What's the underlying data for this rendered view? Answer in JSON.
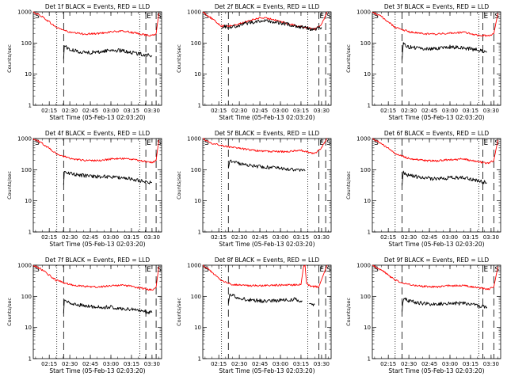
{
  "figure": {
    "x_ticks": [
      "02:15",
      "02:30",
      "02:45",
      "03:00",
      "03:15",
      "03:30"
    ],
    "x_label": "Start Time (05-Feb-13 02:03:20)",
    "y_label": "Counts/sec",
    "y_ticks": [
      "1",
      "10",
      "100",
      "1000"
    ]
  },
  "chart_data": [
    {
      "type": "line",
      "title": "Det 1f BLACK = Events, RED = LLD",
      "xlabel": "Start Time (05-Feb-13 02:03:20)",
      "ylabel": "Counts/sec",
      "yscale": "log",
      "xlim": [
        "02:03:20",
        "03:37:00"
      ],
      "ylim": [
        1,
        1000
      ],
      "x_tick_labels": [
        "02:15",
        "02:30",
        "02:45",
        "03:00",
        "03:15",
        "03:30"
      ],
      "dotted_lines": [
        "02:20:30",
        "03:21:00"
      ],
      "dashed_lines": [
        "02:25:30",
        "03:25:30",
        "03:33:00"
      ],
      "markers": [
        {
          "text": "S",
          "x": "02:04:00"
        },
        {
          "text": "E",
          "x": "03:25:30"
        },
        {
          "text": "S",
          "x": "03:33:00"
        }
      ],
      "series": [
        {
          "name": "RED",
          "color": "#ff0000",
          "x": [
            "02:03:20",
            "02:10:00",
            "02:20:00",
            "02:30:00",
            "02:40:00",
            "02:50:00",
            "03:00:00",
            "03:10:00",
            "03:20:00",
            "03:30:00",
            "03:33:00",
            "03:35:00"
          ],
          "values": [
            1000,
            700,
            320,
            220,
            195,
            200,
            230,
            240,
            200,
            170,
            200,
            900
          ]
        },
        {
          "name": "BLACK",
          "color": "#000000",
          "x": [
            "02:25:30",
            "02:26:00",
            "02:30:00",
            "02:40:00",
            "02:50:00",
            "03:00:00",
            "03:10:00",
            "03:20:00",
            "03:30:00"
          ],
          "values": [
            30,
            85,
            60,
            50,
            50,
            60,
            55,
            45,
            40
          ]
        }
      ]
    },
    {
      "type": "line",
      "title": "Det 2f BLACK = Events, RED = LLD",
      "xlabel": "Start Time (05-Feb-13 02:03:20)",
      "ylabel": "Counts/sec",
      "yscale": "log",
      "xlim": [
        "02:03:20",
        "03:37:00"
      ],
      "ylim": [
        1,
        1000
      ],
      "x_tick_labels": [
        "02:15",
        "02:30",
        "02:45",
        "03:00",
        "03:15",
        "03:30"
      ],
      "dotted_lines": [
        "02:17:00",
        "03:20:00"
      ],
      "dashed_lines": [
        "02:22:00",
        "03:28:00",
        "03:33:00"
      ],
      "markers": [
        {
          "text": "S",
          "x": "02:04:00"
        },
        {
          "text": "E",
          "x": "03:28:00"
        },
        {
          "text": "S",
          "x": "03:33:00"
        }
      ],
      "series": [
        {
          "name": "RED",
          "color": "#ff0000",
          "x": [
            "02:03:20",
            "02:10:00",
            "02:17:00",
            "02:25:00",
            "02:35:00",
            "02:45:00",
            "02:55:00",
            "03:05:00",
            "03:15:00",
            "03:25:00",
            "03:30:00",
            "03:34:00"
          ],
          "values": [
            1000,
            600,
            350,
            360,
            480,
            650,
            580,
            420,
            340,
            280,
            400,
            1000
          ]
        },
        {
          "name": "BLACK",
          "color": "#000000",
          "x": [
            "02:17:00",
            "02:25:00",
            "02:35:00",
            "02:45:00",
            "02:55:00",
            "03:05:00",
            "03:15:00",
            "03:25:00",
            "03:30:00"
          ],
          "values": [
            340,
            330,
            430,
            520,
            480,
            400,
            330,
            270,
            320
          ]
        }
      ]
    },
    {
      "type": "line",
      "title": "Det 3f BLACK = Events, RED = LLD",
      "xlabel": "Start Time (05-Feb-13 02:03:20)",
      "ylabel": "Counts/sec",
      "yscale": "log",
      "xlim": [
        "02:03:20",
        "03:37:00"
      ],
      "ylim": [
        1,
        1000
      ],
      "x_tick_labels": [
        "02:15",
        "02:30",
        "02:45",
        "03:00",
        "03:15",
        "03:30"
      ],
      "dotted_lines": [
        "02:20:00",
        "03:21:00"
      ],
      "dashed_lines": [
        "02:25:00",
        "03:24:00",
        "03:32:00"
      ],
      "markers": [
        {
          "text": "S",
          "x": "02:04:00"
        },
        {
          "text": "E",
          "x": "03:24:00"
        },
        {
          "text": "S",
          "x": "03:32:00"
        }
      ],
      "series": [
        {
          "name": "RED",
          "color": "#ff0000",
          "x": [
            "02:03:20",
            "02:10:00",
            "02:20:00",
            "02:30:00",
            "02:40:00",
            "02:50:00",
            "03:00:00",
            "03:10:00",
            "03:20:00",
            "03:28:00",
            "03:32:00",
            "03:35:00"
          ],
          "values": [
            1000,
            700,
            320,
            230,
            200,
            190,
            210,
            220,
            180,
            170,
            200,
            900
          ]
        },
        {
          "name": "BLACK",
          "color": "#000000",
          "x": [
            "02:25:00",
            "02:26:00",
            "02:30:00",
            "02:40:00",
            "02:50:00",
            "03:00:00",
            "03:10:00",
            "03:20:00",
            "03:27:00"
          ],
          "values": [
            30,
            95,
            75,
            65,
            65,
            75,
            70,
            60,
            50
          ]
        }
      ]
    },
    {
      "type": "line",
      "title": "Det 4f BLACK = Events, RED = LLD",
      "xlabel": "Start Time (05-Feb-13 02:03:20)",
      "ylabel": "Counts/sec",
      "yscale": "log",
      "xlim": [
        "02:03:20",
        "03:37:00"
      ],
      "ylim": [
        1,
        1000
      ],
      "x_tick_labels": [
        "02:15",
        "02:30",
        "02:45",
        "03:00",
        "03:15",
        "03:30"
      ],
      "dotted_lines": [
        "02:20:30",
        "03:21:00"
      ],
      "dashed_lines": [
        "02:25:30",
        "03:25:30",
        "03:33:00"
      ],
      "markers": [
        {
          "text": "S",
          "x": "02:04:00"
        },
        {
          "text": "E",
          "x": "03:25:30"
        },
        {
          "text": "S",
          "x": "03:33:00"
        }
      ],
      "series": [
        {
          "name": "RED",
          "color": "#ff0000",
          "x": [
            "02:03:20",
            "02:10:00",
            "02:20:00",
            "02:30:00",
            "02:40:00",
            "02:50:00",
            "03:00:00",
            "03:10:00",
            "03:20:00",
            "03:30:00",
            "03:33:00",
            "03:35:00"
          ],
          "values": [
            1000,
            700,
            330,
            230,
            200,
            195,
            220,
            230,
            200,
            170,
            200,
            900
          ]
        },
        {
          "name": "BLACK",
          "color": "#000000",
          "x": [
            "02:25:30",
            "02:26:00",
            "02:30:00",
            "02:40:00",
            "02:50:00",
            "03:00:00",
            "03:10:00",
            "03:20:00",
            "03:30:00"
          ],
          "values": [
            30,
            90,
            75,
            65,
            60,
            60,
            55,
            45,
            38
          ]
        }
      ]
    },
    {
      "type": "line",
      "title": "Det 5f BLACK = Events, RED = LLD",
      "xlabel": "Start Time (05-Feb-13 02:03:20)",
      "ylabel": "Counts/sec",
      "yscale": "log",
      "xlim": [
        "02:03:20",
        "03:37:00"
      ],
      "ylim": [
        1,
        1000
      ],
      "x_tick_labels": [
        "02:15",
        "02:30",
        "02:45",
        "03:00",
        "03:15",
        "03:30"
      ],
      "dotted_lines": [
        "02:17:00",
        "03:20:00"
      ],
      "dashed_lines": [
        "02:22:00",
        "03:28:00",
        "03:33:00"
      ],
      "markers": [
        {
          "text": "S",
          "x": "02:04:00"
        },
        {
          "text": "E",
          "x": "03:28:00"
        },
        {
          "text": "S",
          "x": "03:33:00"
        }
      ],
      "series": [
        {
          "name": "RED",
          "color": "#ff0000",
          "x": [
            "02:03:20",
            "02:10:00",
            "02:17:00",
            "02:25:00",
            "02:35:00",
            "02:45:00",
            "02:55:00",
            "03:05:00",
            "03:15:00",
            "03:25:00",
            "03:30:00",
            "03:34:00"
          ],
          "values": [
            1000,
            700,
            600,
            520,
            450,
            400,
            380,
            380,
            420,
            330,
            500,
            1000
          ]
        },
        {
          "name": "BLACK",
          "color": "#000000",
          "x": [
            "02:22:00",
            "02:23:00",
            "02:30:00",
            "02:40:00",
            "02:50:00",
            "03:00:00",
            "03:10:00",
            "03:18:00"
          ],
          "values": [
            120,
            200,
            160,
            130,
            120,
            110,
            100,
            90
          ]
        }
      ]
    },
    {
      "type": "line",
      "title": "Det 6f BLACK = Events, RED = LLD",
      "xlabel": "Start Time (05-Feb-13 02:03:20)",
      "ylabel": "Counts/sec",
      "yscale": "log",
      "xlim": [
        "02:03:20",
        "03:37:00"
      ],
      "ylim": [
        1,
        1000
      ],
      "x_tick_labels": [
        "02:15",
        "02:30",
        "02:45",
        "03:00",
        "03:15",
        "03:30"
      ],
      "dotted_lines": [
        "02:20:00",
        "03:21:00"
      ],
      "dashed_lines": [
        "02:25:00",
        "03:24:00",
        "03:32:00"
      ],
      "markers": [
        {
          "text": "S",
          "x": "02:04:00"
        },
        {
          "text": "E",
          "x": "03:24:00"
        },
        {
          "text": "S",
          "x": "03:32:00"
        }
      ],
      "series": [
        {
          "name": "RED",
          "color": "#ff0000",
          "x": [
            "02:03:20",
            "02:10:00",
            "02:20:00",
            "02:30:00",
            "02:40:00",
            "02:50:00",
            "03:00:00",
            "03:10:00",
            "03:20:00",
            "03:28:00",
            "03:32:00",
            "03:35:00"
          ],
          "values": [
            1000,
            700,
            330,
            230,
            200,
            190,
            210,
            220,
            180,
            160,
            200,
            900
          ]
        },
        {
          "name": "BLACK",
          "color": "#000000",
          "x": [
            "02:25:00",
            "02:26:00",
            "02:30:00",
            "02:40:00",
            "02:50:00",
            "03:00:00",
            "03:10:00",
            "03:20:00",
            "03:27:00"
          ],
          "values": [
            30,
            80,
            65,
            55,
            50,
            55,
            55,
            45,
            38
          ]
        }
      ]
    },
    {
      "type": "line",
      "title": "Det 7f BLACK = Events, RED = LLD",
      "xlabel": "Start Time (05-Feb-13 02:03:20)",
      "ylabel": "Counts/sec",
      "yscale": "log",
      "xlim": [
        "02:03:20",
        "03:37:00"
      ],
      "ylim": [
        1,
        1000
      ],
      "x_tick_labels": [
        "02:15",
        "02:30",
        "02:45",
        "03:00",
        "03:15",
        "03:30"
      ],
      "dotted_lines": [
        "02:20:30",
        "03:21:00"
      ],
      "dashed_lines": [
        "02:25:30",
        "03:25:30",
        "03:33:00"
      ],
      "markers": [
        {
          "text": "S",
          "x": "02:04:00"
        },
        {
          "text": "E",
          "x": "03:25:30"
        },
        {
          "text": "S",
          "x": "03:33:00"
        }
      ],
      "series": [
        {
          "name": "RED",
          "color": "#ff0000",
          "x": [
            "02:03:20",
            "02:10:00",
            "02:20:00",
            "02:30:00",
            "02:40:00",
            "02:50:00",
            "03:00:00",
            "03:10:00",
            "03:20:00",
            "03:30:00",
            "03:33:00",
            "03:35:00"
          ],
          "values": [
            1000,
            700,
            330,
            240,
            210,
            200,
            220,
            230,
            190,
            160,
            200,
            900
          ]
        },
        {
          "name": "BLACK",
          "color": "#000000",
          "x": [
            "02:25:30",
            "02:26:00",
            "02:30:00",
            "02:40:00",
            "02:50:00",
            "03:00:00",
            "03:10:00",
            "03:20:00",
            "03:30:00"
          ],
          "values": [
            25,
            75,
            60,
            50,
            45,
            45,
            40,
            35,
            30
          ]
        }
      ]
    },
    {
      "type": "line",
      "title": "Det 8f BLACK = Events, RED = LLD",
      "xlabel": "Start Time (05-Feb-13 02:03:20)",
      "ylabel": "Counts/sec",
      "yscale": "log",
      "xlim": [
        "02:03:20",
        "03:37:00"
      ],
      "ylim": [
        1,
        1000
      ],
      "x_tick_labels": [
        "02:15",
        "02:30",
        "02:45",
        "03:00",
        "03:15",
        "03:30"
      ],
      "dotted_lines": [
        "02:17:00",
        "03:20:00"
      ],
      "dashed_lines": [
        "02:22:00",
        "03:28:00",
        "03:33:00"
      ],
      "markers": [
        {
          "text": "S",
          "x": "02:04:00"
        },
        {
          "text": "E",
          "x": "03:28:00"
        },
        {
          "text": "S",
          "x": "03:33:00"
        }
      ],
      "series": [
        {
          "name": "RED",
          "color": "#ff0000",
          "x": [
            "02:03:20",
            "02:10:00",
            "02:17:00",
            "02:25:00",
            "02:35:00",
            "02:45:00",
            "02:55:00",
            "03:05:00",
            "03:15:00",
            "03:17:00",
            "03:18:00",
            "03:19:00",
            "03:22:00",
            "03:28:00",
            "03:34:00"
          ],
          "values": [
            1000,
            600,
            320,
            240,
            220,
            220,
            230,
            230,
            240,
            1000,
            1000,
            250,
            210,
            200,
            1000
          ]
        },
        {
          "name": "BLACK",
          "color": "#000000",
          "x": [
            "02:22:00",
            "02:23:00",
            "02:30:00",
            "02:40:00",
            "02:50:00",
            "03:00:00",
            "03:10:00",
            "03:16:00"
          ],
          "values": [
            60,
            120,
            85,
            75,
            70,
            75,
            80,
            70
          ]
        },
        {
          "name": "BLACK",
          "color": "#000000",
          "x": [
            "03:21:00",
            "03:23:00",
            "03:25:00"
          ],
          "values": [
            60,
            50,
            55
          ]
        }
      ]
    },
    {
      "type": "line",
      "title": "Det 9f BLACK = Events, RED = LLD",
      "xlabel": "Start Time (05-Feb-13 02:03:20)",
      "ylabel": "Counts/sec",
      "yscale": "log",
      "xlim": [
        "02:03:20",
        "03:37:00"
      ],
      "ylim": [
        1,
        1000
      ],
      "x_tick_labels": [
        "02:15",
        "02:30",
        "02:45",
        "03:00",
        "03:15",
        "03:30"
      ],
      "dotted_lines": [
        "02:20:00",
        "03:21:00"
      ],
      "dashed_lines": [
        "02:25:00",
        "03:24:00",
        "03:32:00"
      ],
      "markers": [
        {
          "text": "S",
          "x": "02:04:00"
        },
        {
          "text": "E",
          "x": "03:24:00"
        },
        {
          "text": "S",
          "x": "03:32:00"
        }
      ],
      "series": [
        {
          "name": "RED",
          "color": "#ff0000",
          "x": [
            "02:03:20",
            "02:10:00",
            "02:20:00",
            "02:30:00",
            "02:40:00",
            "02:50:00",
            "03:00:00",
            "03:10:00",
            "03:20:00",
            "03:28:00",
            "03:32:00",
            "03:35:00"
          ],
          "values": [
            1000,
            700,
            330,
            240,
            210,
            200,
            220,
            220,
            190,
            170,
            200,
            900
          ]
        },
        {
          "name": "BLACK",
          "color": "#000000",
          "x": [
            "02:25:00",
            "02:26:00",
            "02:30:00",
            "02:40:00",
            "02:50:00",
            "03:00:00",
            "03:10:00",
            "03:20:00",
            "03:27:00"
          ],
          "values": [
            30,
            85,
            70,
            60,
            55,
            60,
            60,
            50,
            45
          ]
        }
      ]
    }
  ]
}
